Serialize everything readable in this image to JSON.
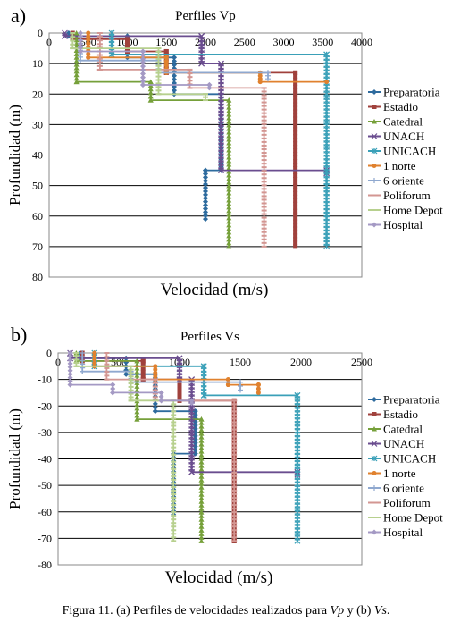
{
  "caption": {
    "prefix": "Figura 11. (a) Perfiles de velocidades realizados para ",
    "vp": "Vp",
    "mid": " y (b) ",
    "vs": "Vs",
    "end": "."
  },
  "legend_colors": {
    "Preparatoria": "#2e6b9e",
    "Estadio": "#a0413c",
    "Catedral": "#76a03a",
    "UNACH": "#6a4d8f",
    "UNICACH": "#3aa0b8",
    "1 norte": "#e0812e",
    "6 oriente": "#8fa8cf",
    "Poliforum": "#d39692",
    "Home Depot": "#b7d08e",
    "Hospital": "#a499c4"
  },
  "chart_data": [
    {
      "type": "line",
      "panel_label": "a)",
      "title": "Perfiles  Vp",
      "xlabel": "Velocidad (m/s)",
      "ylabel": "Profundidad (m)",
      "xlim": [
        0,
        4000
      ],
      "ylim": [
        0,
        80
      ],
      "y_inverted": true,
      "x_ticks": [
        "0",
        "500",
        "1000",
        "1500",
        "2000",
        "2500",
        "3000",
        "3500",
        "4000"
      ],
      "y_ticks": [
        "0",
        "10",
        "20",
        "30",
        "40",
        "50",
        "60",
        "70",
        "80"
      ],
      "grid": "horizontal",
      "legend_position": "right",
      "series": [
        {
          "name": "Preparatoria",
          "x": [
            250,
            250,
            1000,
            1000,
            1600,
            1600,
            2200,
            2200,
            2000,
            2000
          ],
          "y": [
            0,
            1,
            1,
            8,
            8,
            20,
            20,
            45,
            45,
            61
          ]
        },
        {
          "name": "Estadio",
          "x": [
            300,
            300,
            1000,
            1000,
            1500,
            1500,
            3150,
            3150
          ],
          "y": [
            0,
            2,
            2,
            6,
            6,
            13,
            13,
            70
          ]
        },
        {
          "name": "Catedral",
          "x": [
            350,
            350,
            1300,
            1300,
            2300,
            2300
          ],
          "y": [
            0,
            16,
            16,
            22,
            22,
            70
          ]
        },
        {
          "name": "UNACH",
          "x": [
            200,
            200,
            1950,
            1950,
            2200,
            2200,
            3550,
            3550
          ],
          "y": [
            0,
            1,
            1,
            10,
            10,
            45,
            45,
            46
          ]
        },
        {
          "name": "UNICACH",
          "x": [
            800,
            800,
            3550,
            3550
          ],
          "y": [
            0,
            7,
            7,
            70
          ]
        },
        {
          "name": "1 norte",
          "x": [
            500,
            500,
            1500,
            1500,
            2700,
            2700,
            3550
          ],
          "y": [
            0,
            8,
            8,
            13,
            13,
            16,
            16
          ]
        },
        {
          "name": "6 oriente",
          "x": [
            400,
            400,
            1400,
            1400,
            2800,
            2800
          ],
          "y": [
            0,
            9,
            9,
            13,
            13,
            15
          ]
        },
        {
          "name": "Poliforum",
          "x": [
            650,
            650,
            1800,
            1800,
            2750,
            2750
          ],
          "y": [
            0,
            12,
            12,
            18,
            18,
            70
          ]
        },
        {
          "name": "Home Depot",
          "x": [
            300,
            300,
            1400,
            1400,
            2000,
            2000
          ],
          "y": [
            0,
            5,
            5,
            20,
            20,
            22
          ]
        },
        {
          "name": "Hospital",
          "x": [
            400,
            400,
            1200,
            1200,
            2050,
            2050
          ],
          "y": [
            0,
            6,
            6,
            17,
            17,
            18
          ]
        }
      ]
    },
    {
      "type": "line",
      "panel_label": "b)",
      "title": "Perfiles Vs",
      "xlabel": "Velocidad (m/s)",
      "ylabel": "Profundidad (m)",
      "xlim": [
        0,
        2500
      ],
      "ylim": [
        -80,
        0
      ],
      "x_ticks": [
        "0",
        "500",
        "1000",
        "1500",
        "2000",
        "2500"
      ],
      "y_ticks": [
        "0",
        "-10",
        "-20",
        "-30",
        "-40",
        "-50",
        "-60",
        "-70",
        "-80"
      ],
      "grid": "horizontal",
      "legend_position": "right",
      "series": [
        {
          "name": "Preparatoria",
          "x": [
            180,
            180,
            560,
            560,
            800,
            800,
            1130,
            1130,
            950,
            950
          ],
          "y": [
            0,
            -2,
            -2,
            -8,
            -8,
            -22,
            -22,
            -38,
            -38,
            -61
          ]
        },
        {
          "name": "Estadio",
          "x": [
            200,
            200,
            700,
            700,
            1000,
            1000,
            1450,
            1450,
            1450
          ],
          "y": [
            0,
            -3,
            -3,
            -10,
            -10,
            -18,
            -18,
            -71,
            -71
          ]
        },
        {
          "name": "Catedral",
          "x": [
            150,
            150,
            650,
            650,
            1180,
            1180
          ],
          "y": [
            0,
            -3,
            -3,
            -25,
            -25,
            -71
          ]
        },
        {
          "name": "UNACH",
          "x": [
            100,
            100,
            1000,
            1000,
            1100,
            1100,
            1970,
            1970
          ],
          "y": [
            0,
            -2,
            -2,
            -10,
            -10,
            -45,
            -45,
            -46
          ]
        },
        {
          "name": "UNICACH",
          "x": [
            300,
            300,
            1200,
            1200,
            1970,
            1970
          ],
          "y": [
            0,
            -5,
            -5,
            -16,
            -16,
            -71
          ]
        },
        {
          "name": "1 norte",
          "x": [
            300,
            300,
            800,
            800,
            1400,
            1400,
            1650,
            1650
          ],
          "y": [
            0,
            -5,
            -5,
            -10,
            -10,
            -12,
            -12,
            -15
          ]
        },
        {
          "name": "6 oriente",
          "x": [
            200,
            200,
            600,
            600,
            1500,
            1500
          ],
          "y": [
            0,
            -7,
            -7,
            -11,
            -11,
            -14
          ]
        },
        {
          "name": "Poliforum",
          "x": [
            400,
            400,
            800,
            800,
            1450,
            1450
          ],
          "y": [
            0,
            -10,
            -10,
            -18,
            -18,
            -71
          ]
        },
        {
          "name": "Home Depot",
          "x": [
            150,
            150,
            600,
            600,
            950,
            950
          ],
          "y": [
            0,
            -5,
            -5,
            -18,
            -18,
            -71
          ]
        },
        {
          "name": "Hospital",
          "x": [
            100,
            100,
            450,
            450,
            850,
            850,
            1100,
            1100
          ],
          "y": [
            0,
            -12,
            -12,
            -15,
            -15,
            -18,
            -18,
            -19
          ]
        }
      ]
    }
  ]
}
